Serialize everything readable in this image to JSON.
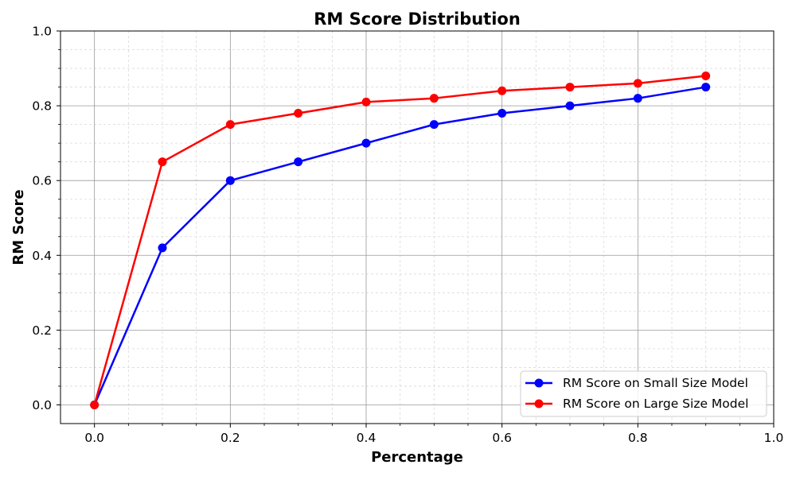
{
  "chart_data": {
    "type": "line",
    "title": "RM Score Distribution",
    "xlabel": "Percentage",
    "ylabel": "RM Score",
    "xlim": [
      -0.05,
      1.0
    ],
    "ylim": [
      -0.05,
      1.0
    ],
    "x": [
      0.0,
      0.1,
      0.2,
      0.3,
      0.4,
      0.5,
      0.6,
      0.7,
      0.8,
      0.9
    ],
    "x_ticks": [
      "0.0",
      "0.2",
      "0.4",
      "0.6",
      "0.8",
      "1.0"
    ],
    "y_ticks": [
      "0.0",
      "0.2",
      "0.4",
      "0.6",
      "0.8",
      "1.0"
    ],
    "grid": true,
    "legend_position": "bottom-right",
    "series": [
      {
        "name": "RM Score on Small Size Model",
        "color": "#0000ff",
        "marker": "circle",
        "values": [
          0.0,
          0.42,
          0.6,
          0.65,
          0.7,
          0.75,
          0.78,
          0.8,
          0.82,
          0.85
        ]
      },
      {
        "name": "RM Score on Large Size Model",
        "color": "#ff0000",
        "marker": "circle",
        "values": [
          0.0,
          0.65,
          0.75,
          0.78,
          0.81,
          0.82,
          0.84,
          0.85,
          0.86,
          0.88
        ]
      }
    ]
  }
}
